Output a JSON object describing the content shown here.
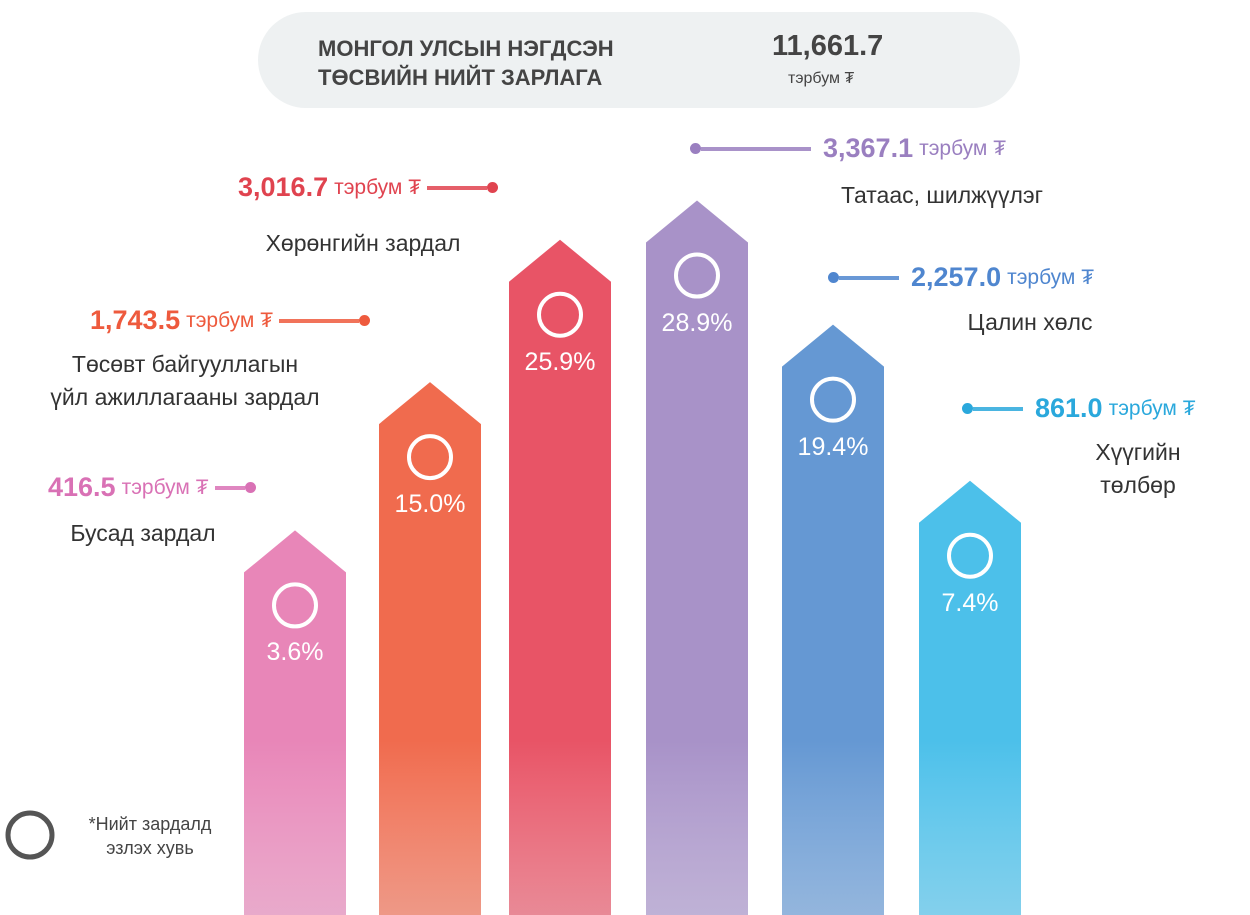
{
  "chart_data": {
    "type": "bar",
    "title": "МОНГОЛ УЛСЫН НЭГДСЭН\nТӨСВИЙН НИЙТ ЗАРЛАГА",
    "total": {
      "value": 11661.7,
      "label": "11,661.7"
    },
    "unit": "тэрбум ₮",
    "categories": [
      "Бусад зардал",
      "Төсөвт байгууллагын\nүйл ажиллагааны зардал",
      "Хөрөнгийн зардал",
      "Татаас, шилжүүлэг",
      "Цалин хөлс",
      "Хүүгийн төлбөр"
    ],
    "values": [
      416.5,
      1743.5,
      3016.7,
      3367.1,
      2257.0,
      861.0
    ],
    "value_labels": [
      "416.5",
      "1,743.5",
      "3,016.7",
      "3,367.1",
      "2,257.0",
      "861.0"
    ],
    "shares": [
      3.6,
      15.0,
      25.9,
      28.9,
      19.4,
      7.4
    ],
    "share_labels": [
      "3.6%",
      "15.0%",
      "25.9%",
      "28.9%",
      "19.4%",
      "7.4%"
    ],
    "colors": [
      "#e886b8",
      "#f06b4e",
      "#e85466",
      "#a892c8",
      "#6598d3",
      "#4cc0ea"
    ],
    "label_colors": [
      "#d971b5",
      "#ee5a3d",
      "#e0434f",
      "#9a7fc0",
      "#4f86cf",
      "#2aa8dc"
    ],
    "note": "*Нийт зардалд\nэзлэх хувь"
  }
}
